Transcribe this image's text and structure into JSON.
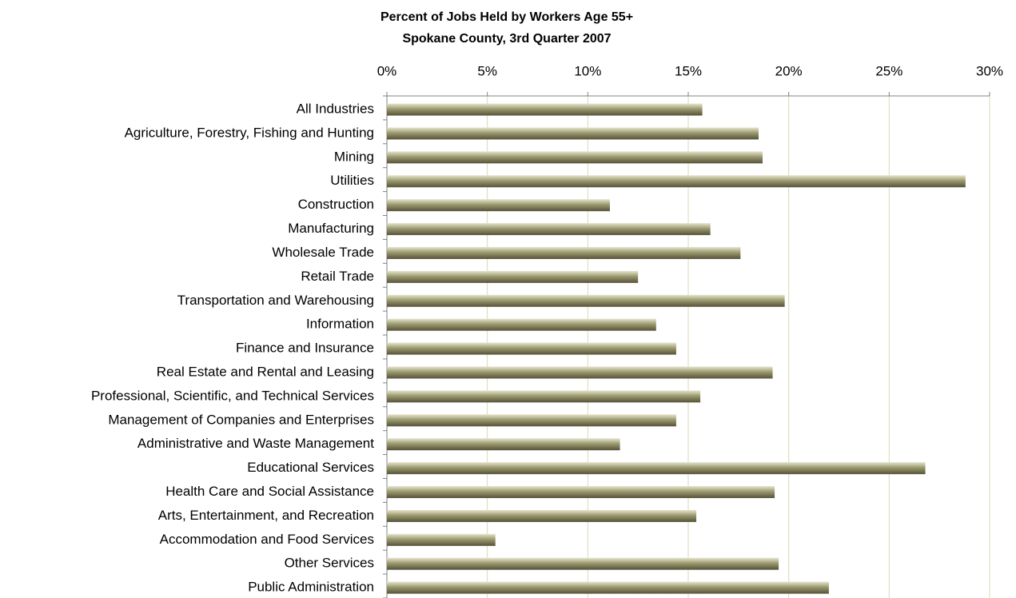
{
  "chart_data": {
    "type": "bar",
    "orientation": "horizontal",
    "title": "Percent of Jobs Held by Workers Age 55+",
    "subtitle": "Spokane County, 3rd Quarter 2007",
    "categories": [
      "All Industries",
      "Agriculture, Forestry, Fishing and Hunting",
      "Mining",
      "Utilities",
      "Construction",
      "Manufacturing",
      "Wholesale Trade",
      "Retail Trade",
      "Transportation and Warehousing",
      "Information",
      "Finance and Insurance",
      "Real Estate and Rental and Leasing",
      "Professional, Scientific, and Technical Services",
      "Management of Companies and Enterprises",
      "Administrative and Waste Management",
      "Educational Services",
      "Health Care and Social Assistance",
      "Arts, Entertainment, and Recreation",
      "Accommodation and Food Services",
      "Other Services",
      "Public Administration"
    ],
    "values": [
      15.7,
      18.5,
      18.7,
      28.8,
      11.1,
      16.1,
      17.6,
      12.5,
      19.8,
      13.4,
      14.4,
      19.2,
      15.6,
      14.4,
      11.6,
      26.8,
      19.3,
      15.4,
      5.4,
      19.5,
      22.0
    ],
    "color": "#9c9a6e",
    "xlim": [
      0,
      30
    ],
    "xticks": [
      {
        "value": 0,
        "label": "0%"
      },
      {
        "value": 5,
        "label": "5%"
      },
      {
        "value": 10,
        "label": "10%"
      },
      {
        "value": 15,
        "label": "15%"
      },
      {
        "value": 20,
        "label": "20%"
      },
      {
        "value": 25,
        "label": "25%"
      },
      {
        "value": 30,
        "label": "30%"
      }
    ],
    "grid": true
  }
}
